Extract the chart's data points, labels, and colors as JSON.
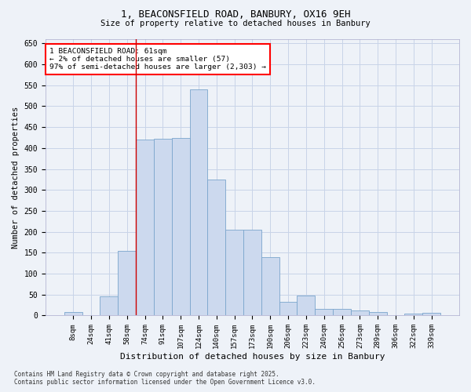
{
  "title": "1, BEACONSFIELD ROAD, BANBURY, OX16 9EH",
  "subtitle": "Size of property relative to detached houses in Banbury",
  "xlabel": "Distribution of detached houses by size in Banbury",
  "ylabel": "Number of detached properties",
  "bar_color": "#ccd9ee",
  "bar_edge_color": "#7aa5cc",
  "grid_color": "#c8d4e8",
  "background_color": "#eef2f8",
  "plot_bg_color": "#eef2f8",
  "categories": [
    "8sqm",
    "24sqm",
    "41sqm",
    "58sqm",
    "74sqm",
    "91sqm",
    "107sqm",
    "124sqm",
    "140sqm",
    "157sqm",
    "173sqm",
    "190sqm",
    "206sqm",
    "223sqm",
    "240sqm",
    "256sqm",
    "273sqm",
    "289sqm",
    "306sqm",
    "322sqm",
    "339sqm"
  ],
  "values": [
    8,
    0,
    45,
    155,
    420,
    422,
    425,
    540,
    325,
    205,
    205,
    140,
    32,
    48,
    15,
    15,
    12,
    8,
    0,
    5,
    7
  ],
  "ylim": [
    0,
    660
  ],
  "yticks": [
    0,
    50,
    100,
    150,
    200,
    250,
    300,
    350,
    400,
    450,
    500,
    550,
    600,
    650
  ],
  "vline_x_index": 3.5,
  "vline_color": "#cc0000",
  "annotation_lines": [
    "1 BEACONSFIELD ROAD: 61sqm",
    "← 2% of detached houses are smaller (57)",
    "97% of semi-detached houses are larger (2,303) →"
  ],
  "footer_line1": "Contains HM Land Registry data © Crown copyright and database right 2025.",
  "footer_line2": "Contains public sector information licensed under the Open Government Licence v3.0.",
  "figsize": [
    6.0,
    5.0
  ],
  "dpi": 100
}
